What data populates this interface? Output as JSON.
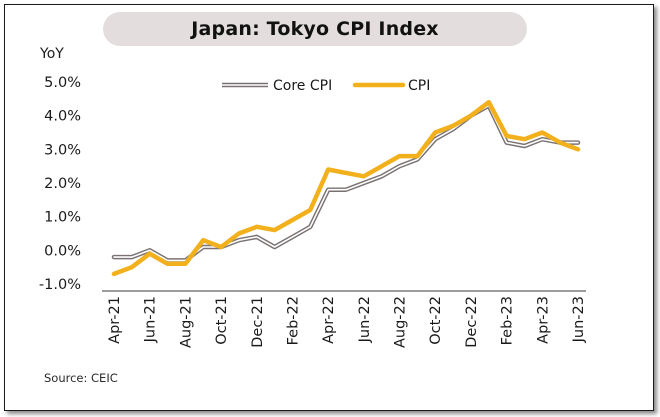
{
  "chart_data": {
    "type": "line",
    "title": "Japan: Tokyo CPI Index",
    "ylabel": "YoY",
    "ylim": [
      -1.0,
      5.0
    ],
    "yticks": [
      5.0,
      4.0,
      3.0,
      2.0,
      1.0,
      0.0,
      -1.0
    ],
    "ytick_labels": [
      "5.0%",
      "4.0%",
      "3.0%",
      "2.0%",
      "1.0%",
      "0.0%",
      "-1.0%"
    ],
    "x_labels": [
      "Apr-21",
      "Jun-21",
      "Aug-21",
      "Oct-21",
      "Dec-21",
      "Feb-22",
      "Apr-22",
      "Jun-22",
      "Aug-22",
      "Oct-22",
      "Dec-22",
      "Feb-23",
      "Apr-23",
      "Jun-23"
    ],
    "x_label_step": 2,
    "series": [
      {
        "name": "Core CPI",
        "color": "#7a7272",
        "values": [
          -0.2,
          -0.2,
          0.0,
          -0.3,
          -0.3,
          0.1,
          0.1,
          0.3,
          0.4,
          0.1,
          0.4,
          0.7,
          1.8,
          1.8,
          2.0,
          2.2,
          2.5,
          2.7,
          3.3,
          3.6,
          4.0,
          4.3,
          3.2,
          3.1,
          3.3,
          3.2,
          3.2
        ]
      },
      {
        "name": "CPI",
        "color": "#f2b11c",
        "values": [
          -0.7,
          -0.5,
          -0.1,
          -0.4,
          -0.4,
          0.3,
          0.1,
          0.5,
          0.7,
          0.6,
          0.9,
          1.2,
          2.4,
          2.3,
          2.2,
          2.5,
          2.8,
          2.8,
          3.5,
          3.7,
          4.0,
          4.4,
          3.4,
          3.3,
          3.5,
          3.2,
          3.0
        ]
      }
    ],
    "legend": [
      "Core CPI",
      "CPI"
    ],
    "legend_position": "top-center"
  },
  "source": "Source: CEIC"
}
